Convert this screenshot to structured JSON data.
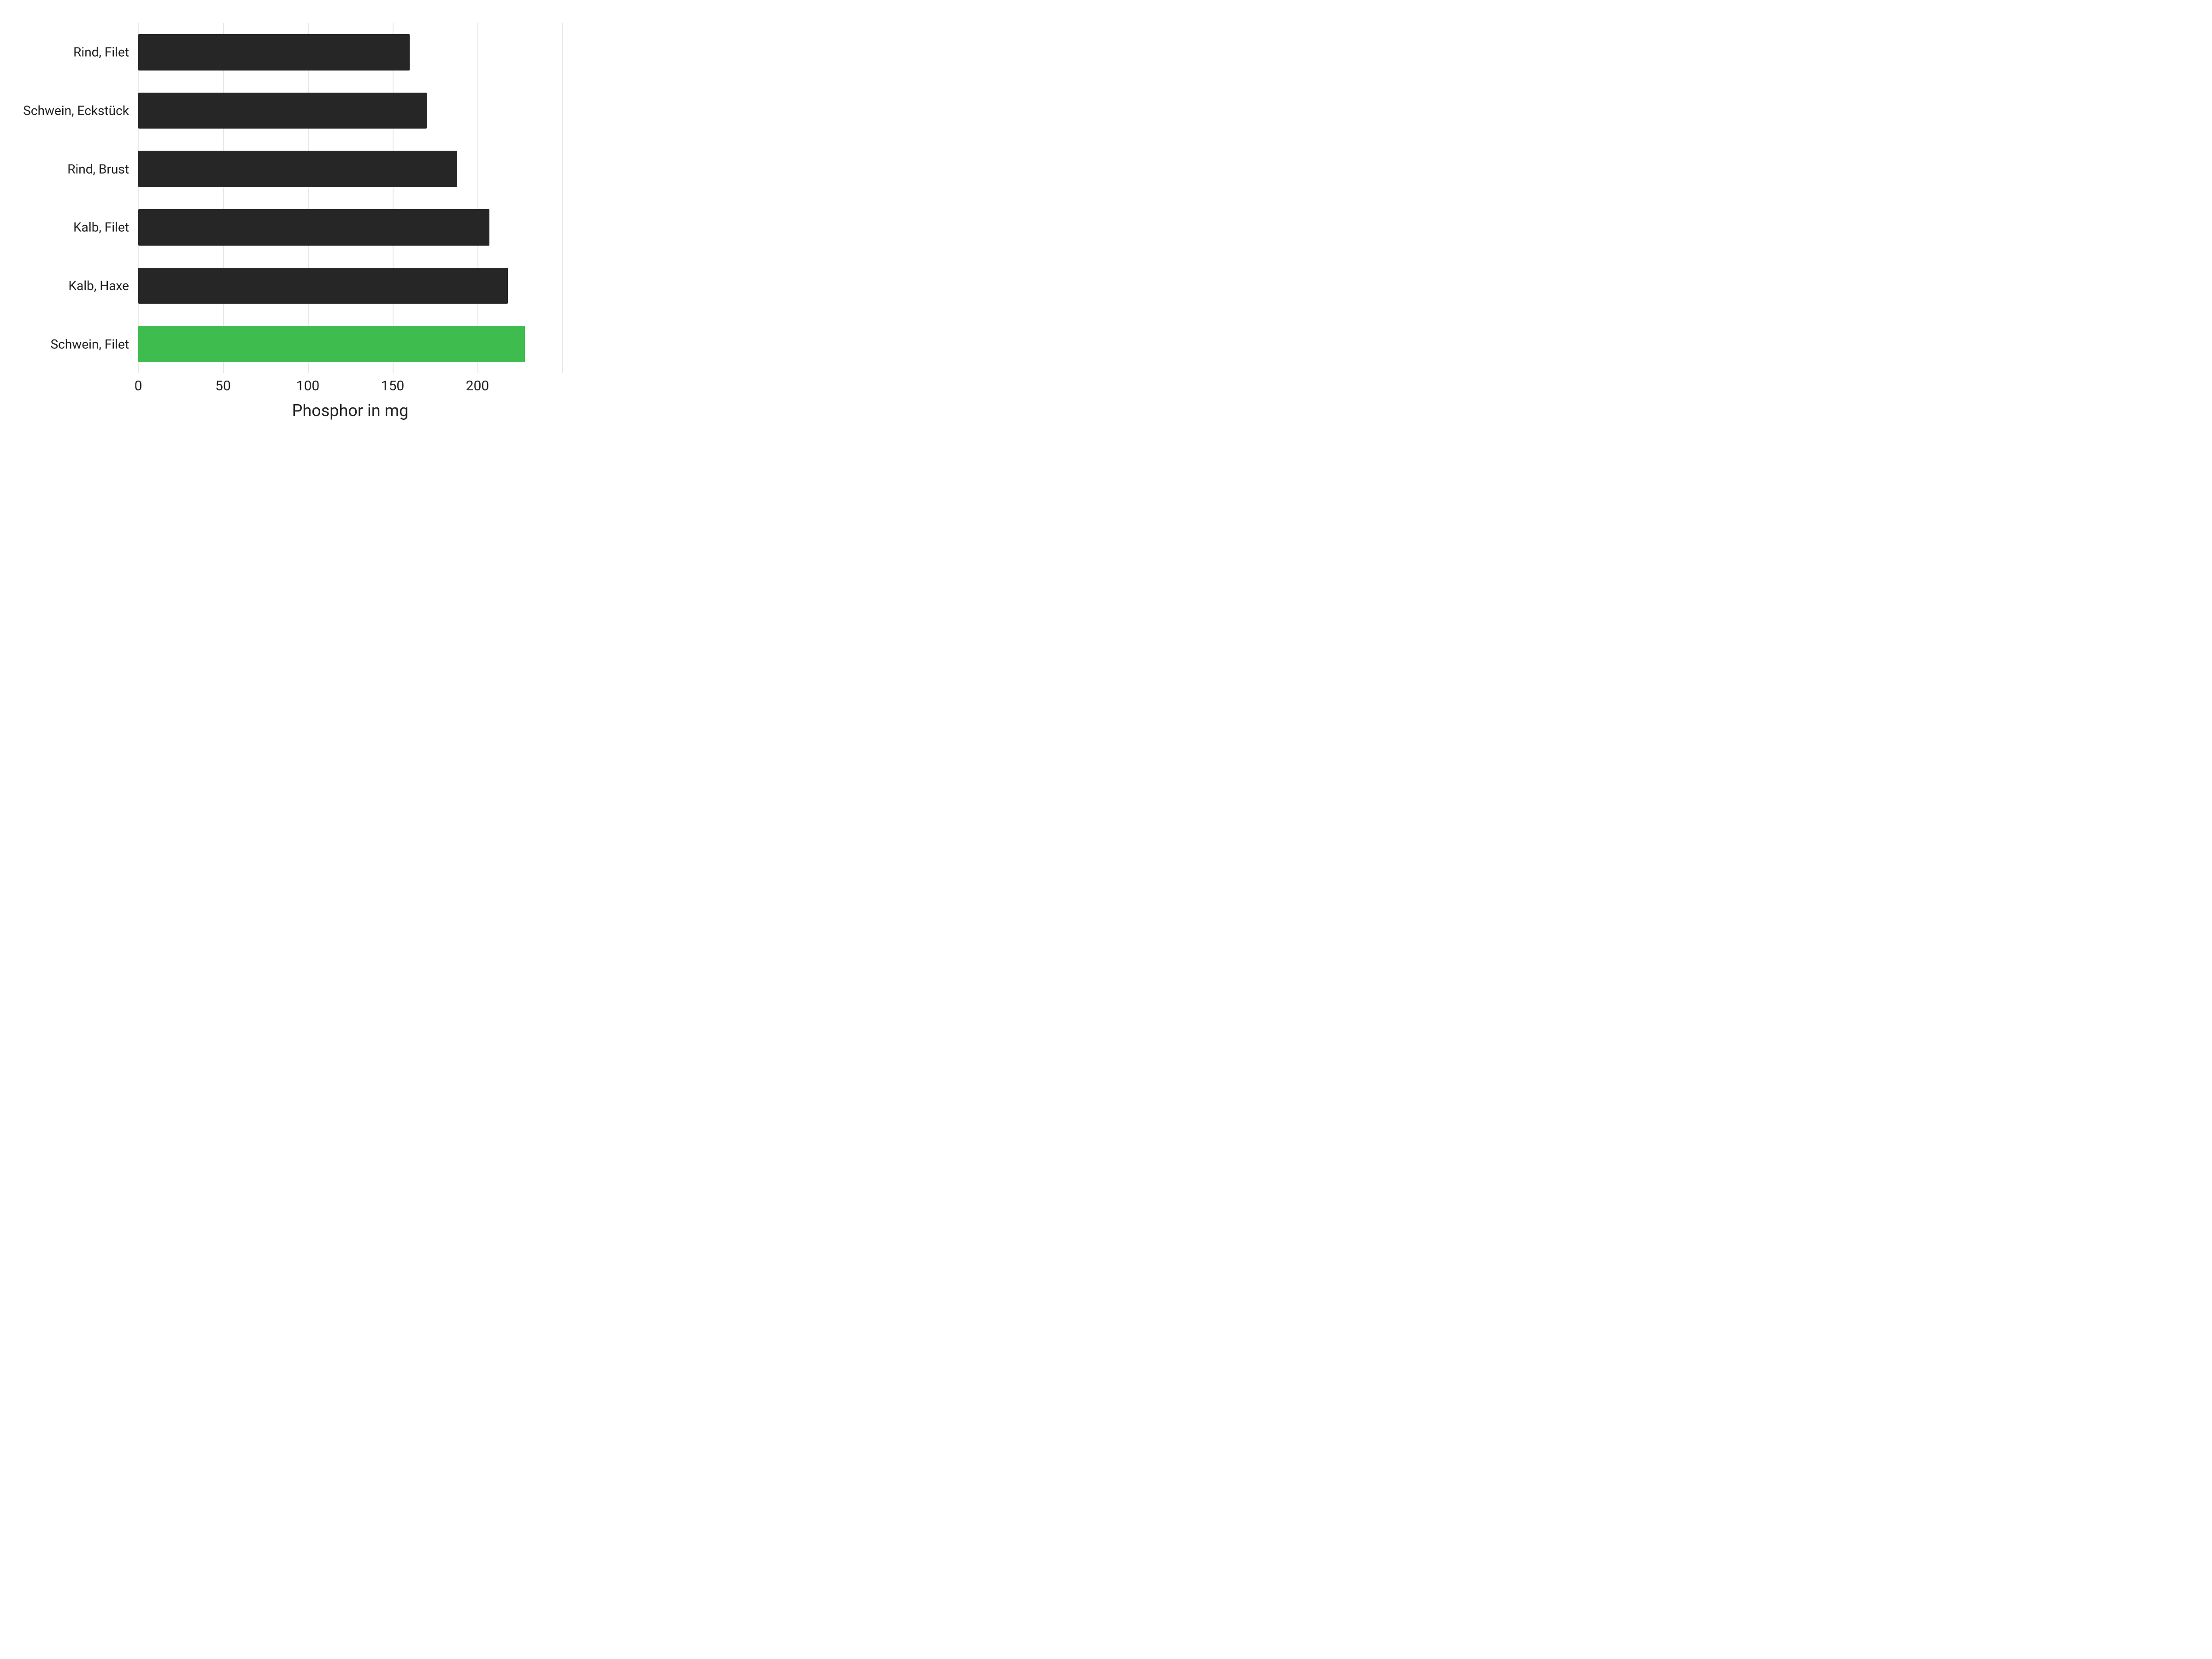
{
  "chart": {
    "type": "bar-horizontal",
    "x_title": "Phosphor in mg",
    "x_title_fontsize": 36,
    "label_fontsize": 28,
    "tick_fontsize": 30,
    "background_color": "#ffffff",
    "grid_color": "#e8e8e8",
    "text_color": "#222222",
    "xlim": [
      0,
      250
    ],
    "x_ticks": [
      0,
      50,
      100,
      150,
      200
    ],
    "bar_height_ratio": 0.62,
    "categories": [
      "Rind, Filet",
      "Schwein, Eckstück",
      "Rind, Brust",
      "Kalb, Filet",
      "Kalb, Haxe",
      "Schwein, Filet"
    ],
    "values": [
      160,
      170,
      188,
      207,
      218,
      228
    ],
    "bar_colors": [
      "#262626",
      "#262626",
      "#262626",
      "#262626",
      "#262626",
      "#3ebd4e"
    ]
  }
}
